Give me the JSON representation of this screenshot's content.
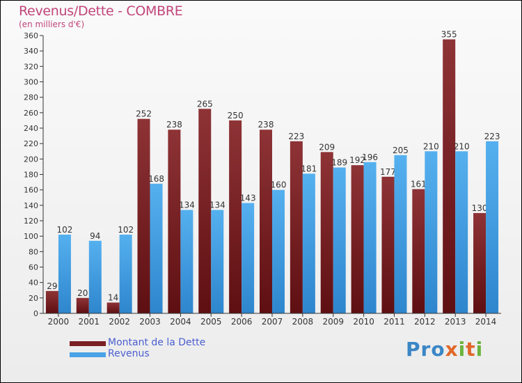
{
  "title": "Revenus/Dette - COMBRE",
  "subtitle": "(en milliers d'€)",
  "colors": {
    "dette": "#7a1f22",
    "revenus": "#4aa3e6",
    "title": "#c1457a",
    "legend_text": "#4b5fd0"
  },
  "legend": [
    {
      "label": "Montant de la Dette",
      "color": "#7a1f22"
    },
    {
      "label": "Revenus",
      "color": "#4aa3e6"
    }
  ],
  "logo_text": "Proxiti",
  "chart_data": {
    "type": "bar",
    "title": "Revenus/Dette - COMBRE",
    "subtitle": "(en milliers d'€)",
    "categories": [
      "2000",
      "2001",
      "2002",
      "2003",
      "2004",
      "2005",
      "2006",
      "2007",
      "2008",
      "2009",
      "2010",
      "2011",
      "2012",
      "2013",
      "2014"
    ],
    "series": [
      {
        "name": "Montant de la Dette",
        "values": [
          29,
          20,
          14,
          252,
          238,
          265,
          250,
          238,
          223,
          209,
          192,
          177,
          161,
          355,
          130
        ],
        "labels": [
          "29",
          "20",
          "14",
          "252",
          "238",
          "265",
          "250",
          "238",
          "223",
          "209",
          "192",
          "177",
          "161",
          "355",
          "130"
        ]
      },
      {
        "name": "Revenus",
        "values": [
          102,
          94,
          102,
          168,
          134,
          134,
          143,
          160,
          181,
          189,
          196,
          205,
          210,
          210,
          223
        ],
        "labels": [
          "102",
          "94",
          "102",
          "168",
          "134",
          "134",
          "143",
          "160",
          "181",
          "189",
          "196",
          "205",
          "210",
          "210",
          "223"
        ]
      }
    ],
    "ylim": [
      0,
      360
    ],
    "yticks": [
      0,
      20,
      40,
      60,
      80,
      100,
      120,
      140,
      160,
      180,
      200,
      220,
      240,
      260,
      280,
      300,
      320,
      340,
      360
    ],
    "grid": false,
    "legend_position": "bottom-left"
  }
}
